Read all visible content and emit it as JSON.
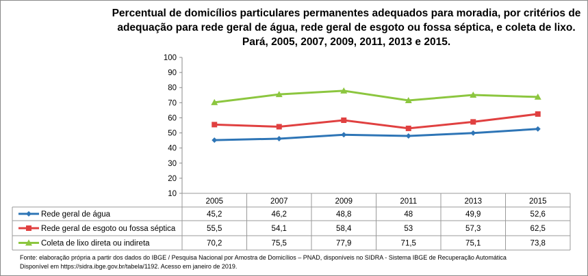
{
  "chart_data": {
    "type": "line",
    "title": "Percentual de domicílios particulares permanentes adequados para moradia, por critérios de adequação para rede geral de água, rede geral de esgoto ou fossa séptica, e coleta de lixo. Pará,  2005, 2007, 2009, 2011, 2013 e 2015.",
    "categories": [
      "2005",
      "2007",
      "2009",
      "2011",
      "2013",
      "2015"
    ],
    "ylim": [
      10,
      100
    ],
    "yticks": [
      "10",
      "20",
      "30",
      "40",
      "50",
      "60",
      "70",
      "80",
      "90",
      "100"
    ],
    "grid": false,
    "legend": "data-table",
    "series": [
      {
        "name": "Rede geral de água",
        "color": "#2e75b6",
        "marker": "diamond",
        "values": [
          "45,2",
          "46,2",
          "48,8",
          "48",
          "49,9",
          "52,6"
        ]
      },
      {
        "name": "Rede geral de esgoto ou fossa séptica",
        "color": "#e04040",
        "marker": "square",
        "values": [
          "55,5",
          "54,1",
          "58,4",
          "53",
          "57,3",
          "62,5"
        ]
      },
      {
        "name": "Coleta de lixo direta ou indireta",
        "color": "#8cc63f",
        "marker": "triangle",
        "values": [
          "70,2",
          "75,5",
          "77,9",
          "71,5",
          "75,1",
          "73,8"
        ]
      }
    ]
  },
  "source": {
    "line1": "Fonte: elaboração própria a partir dos dados do IBGE / Pesquisa Nacional por Amostra de Domicílios – PNAD, disponíveis no SIDRA - Sistema IBGE de Recuperação Automática",
    "line2": "Disponível em https://sidra.ibge.gov.br/tabela/1192. Acesso em janeiro de 2019."
  }
}
